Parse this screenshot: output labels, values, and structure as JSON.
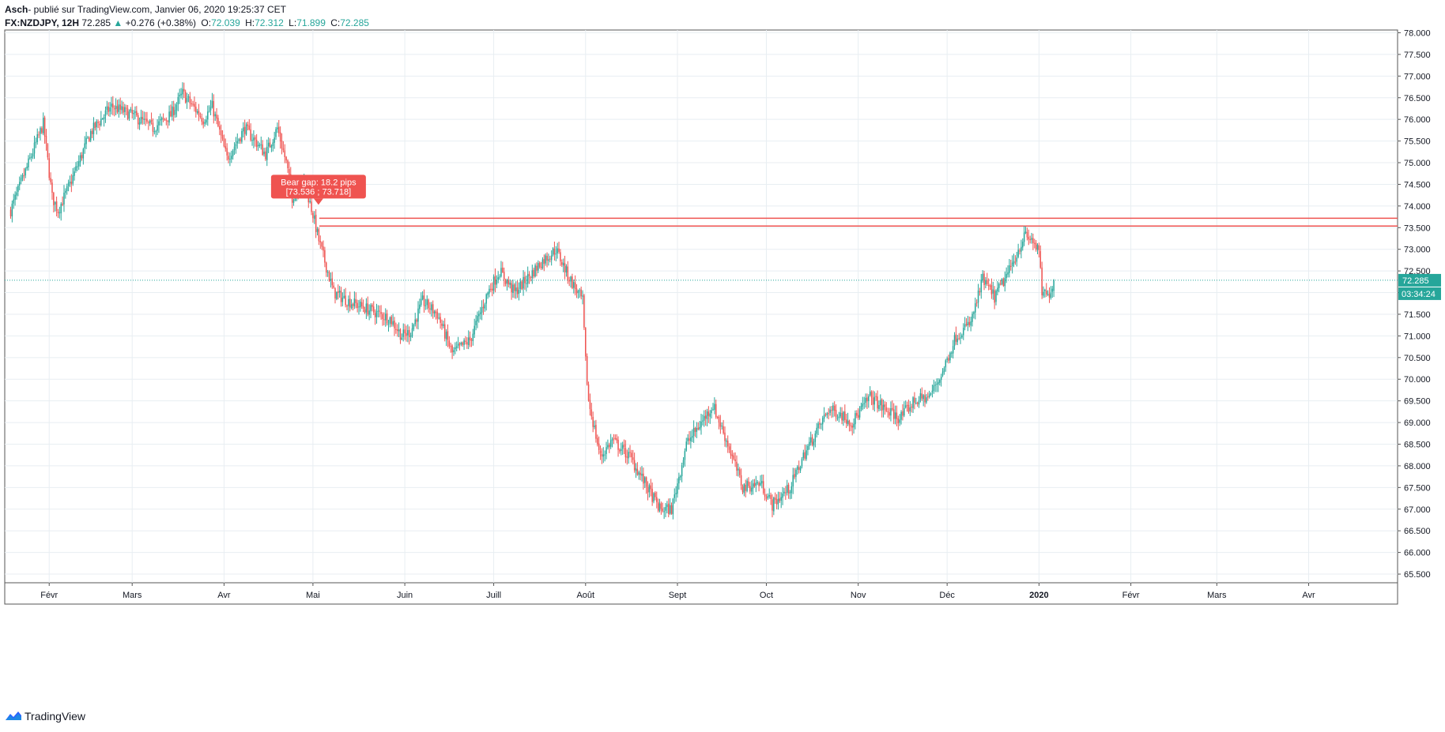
{
  "header": {
    "author": "Asch",
    "published": "- publié sur TradingView.com, Janvier 06, 2020 19:25:37 CET",
    "symbol": "FX:NZDJPY, 12H",
    "last": "72.285",
    "change_arrow": "▲",
    "change": "+0.276 (+0.38%)",
    "open_label": "O:",
    "open": "72.039",
    "high_label": "H:",
    "high": "72.312",
    "low_label": "L:",
    "low": "71.899",
    "close_label": "C:",
    "close": "72.285"
  },
  "footer": {
    "brand": "TradingView"
  },
  "colors": {
    "up": "#26a69a",
    "down": "#ef5350",
    "grid": "#e8eef2",
    "annotation": "#ef5350"
  },
  "chart_data": {
    "type": "candlestick",
    "symbol": "FX:NZDJPY",
    "interval": "12H",
    "ylim": [
      65.3,
      78.1
    ],
    "y_ticks": [
      "78.000",
      "77.500",
      "77.000",
      "76.500",
      "76.000",
      "75.500",
      "75.000",
      "74.500",
      "74.000",
      "73.500",
      "73.000",
      "72.500",
      "72.000",
      "71.500",
      "71.000",
      "70.500",
      "70.000",
      "69.500",
      "69.000",
      "68.500",
      "68.000",
      "67.500",
      "67.000",
      "66.500",
      "66.000",
      "65.500"
    ],
    "x_ticks": [
      "Févr",
      "Mars",
      "Avr",
      "Mai",
      "Juin",
      "Juill",
      "Août",
      "Sept",
      "Oct",
      "Nov",
      "Déc",
      "2020",
      "Févr",
      "Mars",
      "Avr"
    ],
    "price_path": [
      [
        "2019-01-19",
        73.9
      ],
      [
        "2019-01-24",
        74.8
      ],
      [
        "2019-01-30",
        75.9
      ],
      [
        "2019-02-02",
        74.2
      ],
      [
        "2019-02-04",
        73.9
      ],
      [
        "2019-02-08",
        74.5
      ],
      [
        "2019-02-15",
        75.7
      ],
      [
        "2019-02-22",
        76.3
      ],
      [
        "2019-03-01",
        76.1
      ],
      [
        "2019-03-08",
        75.8
      ],
      [
        "2019-03-14",
        76.1
      ],
      [
        "2019-03-18",
        76.6
      ],
      [
        "2019-03-25",
        76.0
      ],
      [
        "2019-03-28",
        76.3
      ],
      [
        "2019-04-02",
        75.1
      ],
      [
        "2019-04-08",
        75.8
      ],
      [
        "2019-04-15",
        75.2
      ],
      [
        "2019-04-19",
        75.8
      ],
      [
        "2019-04-22",
        75.0
      ],
      [
        "2019-04-24",
        74.2
      ],
      [
        "2019-04-28",
        74.6
      ],
      [
        "2019-05-01",
        73.8
      ],
      [
        "2019-05-03",
        73.2
      ],
      [
        "2019-05-08",
        72.0
      ],
      [
        "2019-05-13",
        71.8
      ],
      [
        "2019-05-20",
        71.6
      ],
      [
        "2019-05-27",
        71.4
      ],
      [
        "2019-05-31",
        71.0
      ],
      [
        "2019-06-03",
        71.1
      ],
      [
        "2019-06-07",
        71.8
      ],
      [
        "2019-06-12",
        71.5
      ],
      [
        "2019-06-17",
        70.6
      ],
      [
        "2019-06-23",
        70.9
      ],
      [
        "2019-06-29",
        72.0
      ],
      [
        "2019-07-03",
        72.5
      ],
      [
        "2019-07-08",
        72.0
      ],
      [
        "2019-07-12",
        72.3
      ],
      [
        "2019-07-17",
        72.7
      ],
      [
        "2019-07-22",
        73.0
      ],
      [
        "2019-07-26",
        72.4
      ],
      [
        "2019-07-31",
        71.8
      ],
      [
        "2019-08-01",
        70.4
      ],
      [
        "2019-08-02",
        69.5
      ],
      [
        "2019-08-06",
        68.2
      ],
      [
        "2019-08-10",
        68.6
      ],
      [
        "2019-08-16",
        68.2
      ],
      [
        "2019-08-21",
        67.6
      ],
      [
        "2019-08-26",
        67.0
      ],
      [
        "2019-08-30",
        67.0
      ],
      [
        "2019-09-04",
        68.5
      ],
      [
        "2019-09-09",
        69.0
      ],
      [
        "2019-09-13",
        69.4
      ],
      [
        "2019-09-18",
        68.5
      ],
      [
        "2019-09-23",
        67.5
      ],
      [
        "2019-09-29",
        67.6
      ],
      [
        "2019-10-03",
        67.1
      ],
      [
        "2019-10-09",
        67.5
      ],
      [
        "2019-10-14",
        68.3
      ],
      [
        "2019-10-18",
        68.8
      ],
      [
        "2019-10-22",
        69.3
      ],
      [
        "2019-10-26",
        69.2
      ],
      [
        "2019-10-30",
        69.0
      ],
      [
        "2019-11-05",
        69.6
      ],
      [
        "2019-11-10",
        69.3
      ],
      [
        "2019-11-15",
        69.1
      ],
      [
        "2019-11-20",
        69.5
      ],
      [
        "2019-11-25",
        69.6
      ],
      [
        "2019-11-29",
        70.1
      ],
      [
        "2019-12-04",
        71.0
      ],
      [
        "2019-12-09",
        71.3
      ],
      [
        "2019-12-13",
        72.3
      ],
      [
        "2019-12-17",
        71.9
      ],
      [
        "2019-12-22",
        72.5
      ],
      [
        "2019-12-27",
        73.3
      ],
      [
        "2019-12-30",
        73.2
      ],
      [
        "2020-01-01",
        72.9
      ],
      [
        "2020-01-02",
        72.0
      ],
      [
        "2020-01-04",
        71.9
      ],
      [
        "2020-01-06",
        72.285
      ]
    ],
    "hlines": [
      73.718,
      73.536
    ],
    "current_price_line": 72.285,
    "price_label": "72.285",
    "countdown_label": "03:34:24",
    "annotation": {
      "line1": "Bear gap: 18.2 pips",
      "line2": "[73.536 ; 73.718]",
      "date": "2019-05-01"
    }
  }
}
